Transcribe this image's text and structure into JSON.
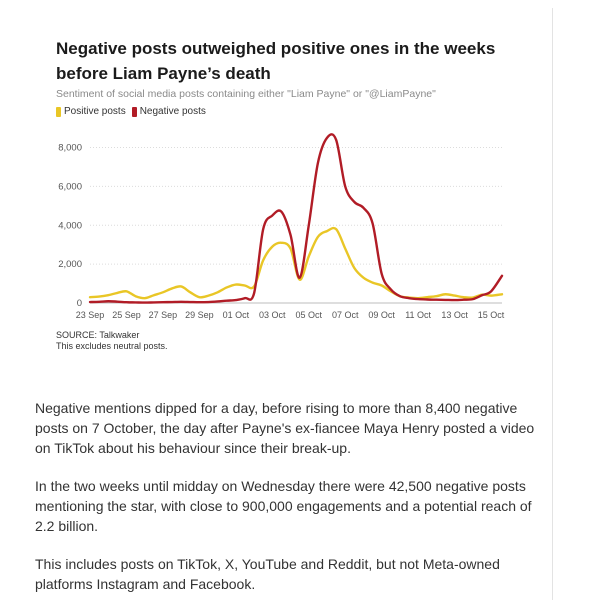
{
  "article": {
    "paragraphs": [
      "Negative mentions dipped for a day, before rising to more than 8,400 negative posts on 7 October, the day after Payne's ex-fiancee Maya Henry posted a video on TikTok about his behaviour since their break-up.",
      "In the two weeks until midday on Wednesday there were 42,500 negative posts mentioning the star, with close to 900,000 engagements and a potential reach of 2.2 billion.",
      "This includes posts on TikTok, X, YouTube and Reddit, but not Meta-owned platforms Instagram and Facebook."
    ]
  },
  "chart_data": {
    "type": "line",
    "title": "Negative posts outweighed positive ones in the weeks before Liam Payne’s death",
    "subtitle": "Sentiment of social media posts containing either \"Liam Payne\" or \"@LiamPayne\"",
    "legend_position": "top-left",
    "grid": true,
    "x_tick_labels": [
      "23 Sep",
      "25 Sep",
      "27 Sep",
      "29 Sep",
      "01 Oct",
      "03 Oct",
      "05 Oct",
      "07 Oct",
      "09 Oct",
      "11 Oct",
      "13 Oct",
      "15 Oct"
    ],
    "y_tick_labels": [
      "0",
      "2,000",
      "4,000",
      "6,000",
      "8,000"
    ],
    "y_ticks": [
      0,
      2000,
      4000,
      6000,
      8000
    ],
    "ylim": [
      0,
      8800
    ],
    "xlim": [
      0,
      22.6
    ],
    "x": [
      0,
      0.5,
      1,
      1.5,
      2,
      2.5,
      3,
      3.5,
      4,
      4.5,
      5,
      5.5,
      6,
      6.5,
      7,
      7.5,
      8,
      8.5,
      9,
      9.5,
      10,
      10.5,
      11,
      11.5,
      12,
      12.5,
      13,
      13.5,
      14,
      14.5,
      15,
      15.5,
      16,
      16.5,
      17,
      17.5,
      18,
      18.5,
      19,
      19.5,
      20,
      20.5,
      21,
      21.5,
      22,
      22.6
    ],
    "series": [
      {
        "name": "Positive posts",
        "color": "#e9c626",
        "values": [
          300,
          330,
          400,
          520,
          600,
          350,
          250,
          400,
          550,
          750,
          850,
          550,
          300,
          380,
          550,
          800,
          950,
          900,
          850,
          2200,
          2900,
          3100,
          2800,
          1200,
          2400,
          3400,
          3700,
          3800,
          2800,
          1800,
          1300,
          1050,
          900,
          600,
          350,
          280,
          250,
          300,
          350,
          450,
          380,
          300,
          280,
          430,
          380,
          450
        ]
      },
      {
        "name": "Negative posts",
        "color": "#b11c26",
        "values": [
          50,
          60,
          90,
          70,
          40,
          30,
          20,
          30,
          40,
          50,
          60,
          50,
          40,
          50,
          80,
          120,
          150,
          250,
          500,
          3800,
          4500,
          4700,
          3500,
          1300,
          4000,
          7200,
          8500,
          8400,
          6000,
          5200,
          4900,
          4100,
          1500,
          700,
          350,
          250,
          200,
          180,
          170,
          160,
          150,
          170,
          200,
          400,
          600,
          1400
        ]
      }
    ],
    "source": "SOURCE: Talkwaker",
    "note": "This excludes neutral posts."
  }
}
